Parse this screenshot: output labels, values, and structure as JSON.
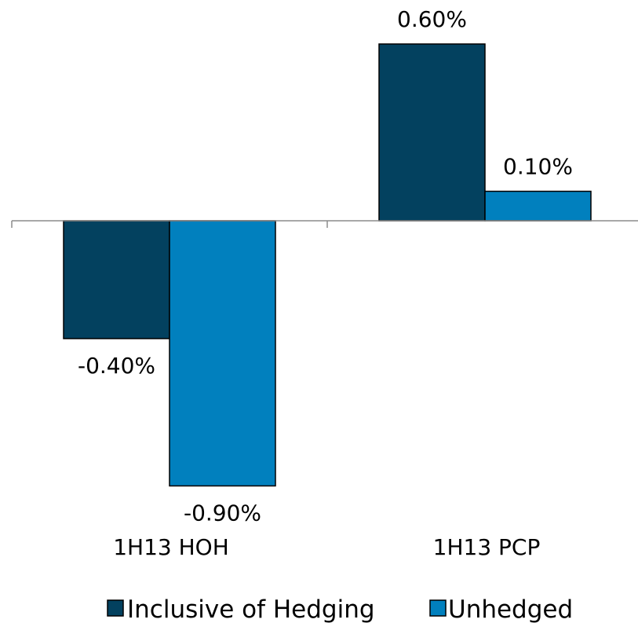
{
  "chart_data": {
    "type": "bar",
    "categories": [
      "1H13 HOH",
      "1H13 PCP"
    ],
    "series": [
      {
        "name": "Inclusive of Hedging",
        "values": [
          -0.4,
          0.6
        ],
        "labels": [
          "-0.40%",
          "0.60%"
        ],
        "color": "#03415F"
      },
      {
        "name": "Unhedged",
        "values": [
          -0.9,
          0.1
        ],
        "labels": [
          "-0.90%",
          "0.10%"
        ],
        "color": "#0180BE"
      }
    ],
    "title": "",
    "xlabel": "",
    "ylabel": "",
    "ylim": [
      -1.0,
      0.7
    ],
    "grid": false,
    "legend_position": "bottom",
    "value_unit": "%"
  }
}
